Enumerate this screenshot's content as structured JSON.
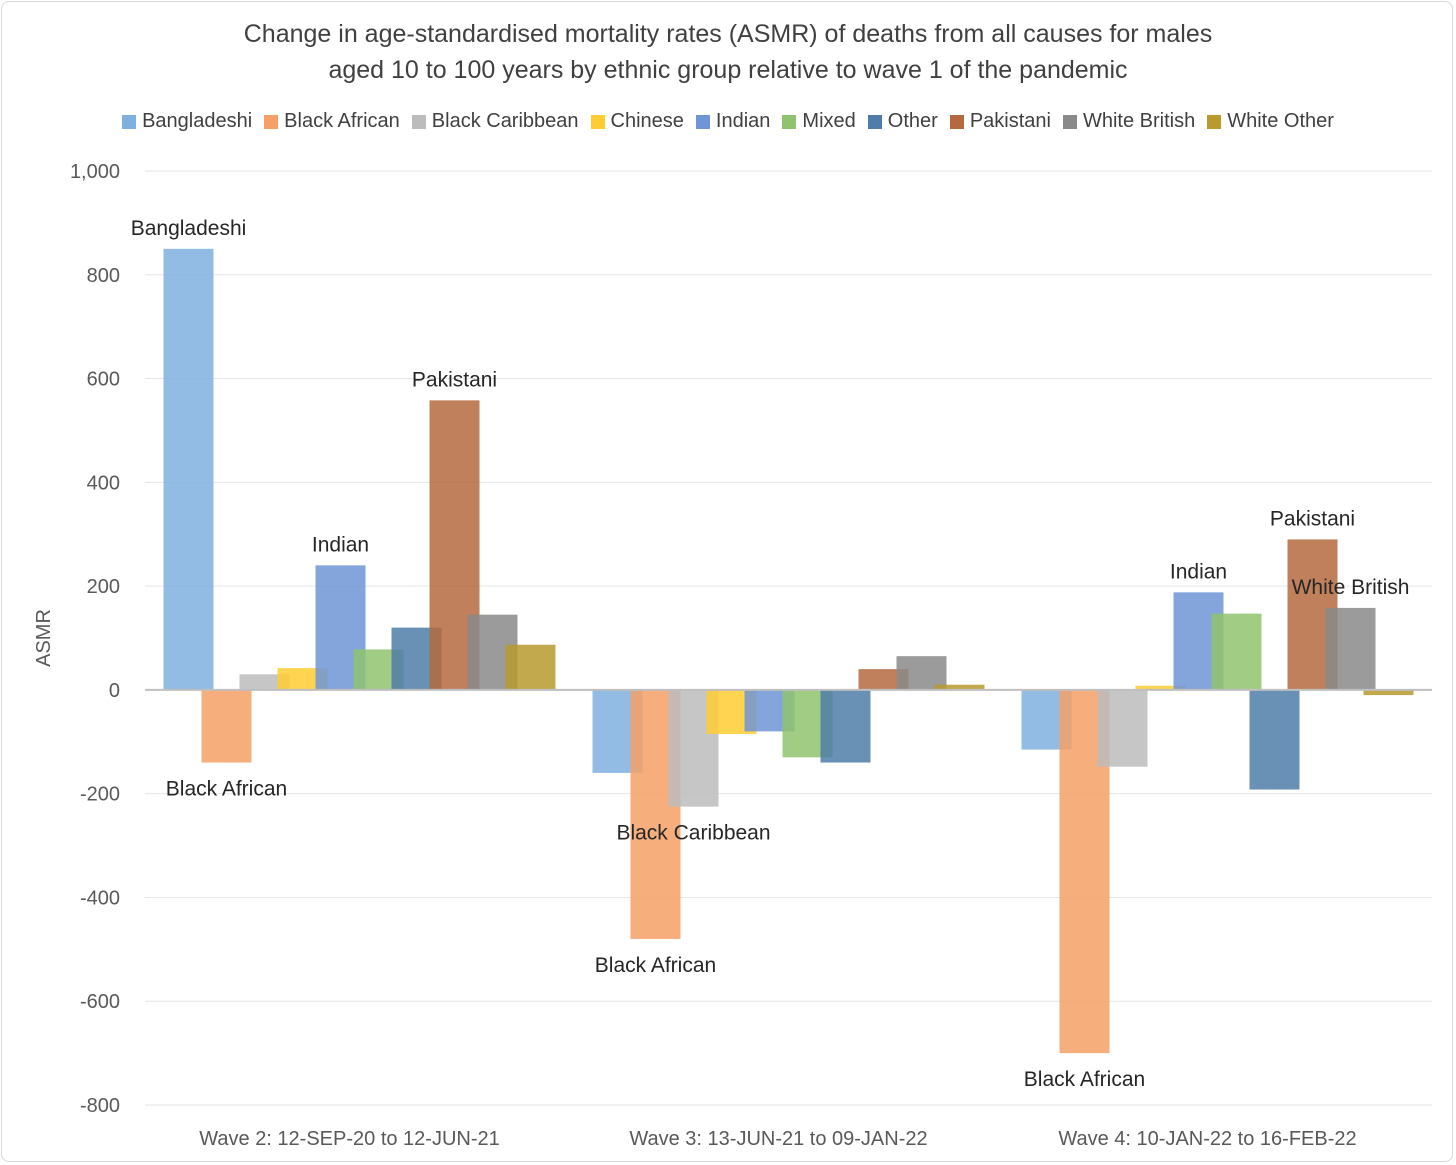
{
  "chart_data": {
    "type": "bar",
    "title": [
      "Change in age-standardised mortality rates (ASMR) of deaths from all causes for males",
      "aged 10 to 100 years by ethnic group relative to wave 1 of the pandemic"
    ],
    "ylabel": "ASMR",
    "xlabel": "",
    "ylim": [
      -800,
      1000
    ],
    "yticks": [
      1000,
      800,
      600,
      400,
      200,
      0,
      -200,
      -400,
      -600,
      -800
    ],
    "ytick_labels": [
      "1,000",
      "800",
      "600",
      "400",
      "200",
      "0",
      "-200",
      "-400",
      "-600",
      "-800"
    ],
    "grid": true,
    "legend_position": "top",
    "categories": [
      "Wave 2: 12-SEP-20 to 12-JUN-21",
      "Wave 3: 13-JUN-21 to 09-JAN-22",
      "Wave 4: 10-JAN-22 to 16-FEB-22"
    ],
    "series": [
      {
        "name": "Bangladeshi",
        "color": "#7fb0df",
        "values": [
          850,
          -160,
          -115
        ]
      },
      {
        "name": "Black African",
        "color": "#f4a066",
        "values": [
          -140,
          -480,
          -700
        ]
      },
      {
        "name": "Black Caribbean",
        "color": "#bcbcbc",
        "values": [
          30,
          -225,
          -148
        ]
      },
      {
        "name": "Chinese",
        "color": "#ffcc33",
        "values": [
          42,
          -85,
          8
        ]
      },
      {
        "name": "Indian",
        "color": "#6f95d6",
        "values": [
          240,
          -80,
          188
        ]
      },
      {
        "name": "Mixed",
        "color": "#8fc36f",
        "values": [
          78,
          -130,
          147
        ]
      },
      {
        "name": "Other",
        "color": "#4f7ca8",
        "values": [
          120,
          -140,
          -192
        ]
      },
      {
        "name": "Pakistani",
        "color": "#b46a3e",
        "values": [
          558,
          40,
          290
        ]
      },
      {
        "name": "White British",
        "color": "#8a8a8a",
        "values": [
          145,
          65,
          158
        ]
      },
      {
        "name": "White Other",
        "color": "#b89a2e",
        "values": [
          87,
          10,
          -10
        ]
      }
    ],
    "annotations": [
      {
        "text": "Bangladeshi",
        "category": 0,
        "series": 0
      },
      {
        "text": "Black African",
        "category": 0,
        "series": 1
      },
      {
        "text": "Indian",
        "category": 0,
        "series": 4
      },
      {
        "text": "Pakistani",
        "category": 0,
        "series": 7
      },
      {
        "text": "Black Caribbean",
        "category": 1,
        "series": 2
      },
      {
        "text": "Black African",
        "category": 1,
        "series": 1
      },
      {
        "text": "Indian",
        "category": 2,
        "series": 4
      },
      {
        "text": "Pakistani",
        "category": 2,
        "series": 7
      },
      {
        "text": "White British",
        "category": 2,
        "series": 8
      },
      {
        "text": "Black African",
        "category": 2,
        "series": 1
      }
    ]
  }
}
